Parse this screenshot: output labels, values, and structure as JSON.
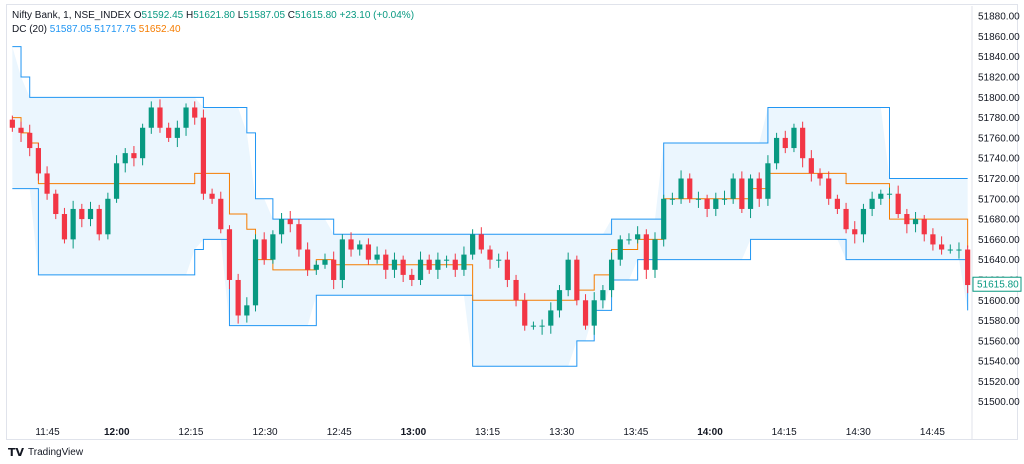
{
  "header": {
    "symbol": "Nifty Bank, 1, NSE_INDEX",
    "o_label": "O",
    "o_value": "51592.45",
    "h_label": "H",
    "h_value": "51621.80",
    "l_label": "L",
    "l_value": "51587.05",
    "c_label": "C",
    "c_value": "51615.80",
    "change": "+23.10 (+0.04%)"
  },
  "indicator": {
    "name": "DC (20)",
    "lower": "51587.05",
    "upper": "51717.75",
    "basis": "51652.40"
  },
  "footer": {
    "brand": "TradingView"
  },
  "colors": {
    "up": "#089981",
    "down": "#f23645",
    "channel_line": "#2196f3",
    "channel_fill": "#e3f2fd",
    "basis_line": "#f57c00"
  },
  "chart_data": {
    "type": "candlestick",
    "yaxis": {
      "ticks": [
        "51880.00",
        "51860.00",
        "51840.00",
        "51820.00",
        "51800.00",
        "51780.00",
        "51760.00",
        "51740.00",
        "51720.00",
        "51700.00",
        "51680.00",
        "51660.00",
        "51640.00",
        "51620.00",
        "51600.00",
        "51580.00",
        "51560.00",
        "51540.00",
        "51520.00",
        "51500.00"
      ],
      "last_price_label": "51615.80",
      "range": [
        51482,
        51890
      ]
    },
    "xaxis": {
      "ticks": [
        "11:45",
        "12:00",
        "12:15",
        "12:30",
        "12:45",
        "13:00",
        "13:15",
        "13:30",
        "13:45",
        "14:00",
        "14:15",
        "14:30",
        "14:45"
      ],
      "bold_ticks": [
        "12:00",
        "13:00",
        "14:00"
      ]
    },
    "closes": [
      51770,
      51765,
      51750,
      51725,
      51705,
      51685,
      51660,
      51690,
      51680,
      51690,
      51665,
      51700,
      51735,
      51745,
      51740,
      51770,
      51790,
      51770,
      51760,
      51770,
      51790,
      51780,
      51705,
      51700,
      51670,
      51620,
      51585,
      51595,
      51660,
      51640,
      51665,
      51680,
      51675,
      51650,
      51630,
      51635,
      51640,
      51620,
      51660,
      51650,
      51655,
      51640,
      51645,
      51630,
      51640,
      51625,
      51620,
      51640,
      51630,
      51640,
      51640,
      51630,
      51645,
      51665,
      51650,
      51640,
      51640,
      51620,
      51600,
      51575,
      51575,
      51575,
      51590,
      51610,
      51640,
      51600,
      51575,
      51600,
      51610,
      51640,
      51660,
      51660,
      51665,
      51630,
      51660,
      51700,
      51700,
      51720,
      51700,
      51700,
      51690,
      51700,
      51700,
      51720,
      51690,
      51720,
      51700,
      51735,
      51760,
      51750,
      51770,
      51740,
      51725,
      51720,
      51700,
      51690,
      51670,
      51665,
      51690,
      51700,
      51705,
      51705,
      51685,
      51675,
      51680,
      51665,
      51655,
      51650,
      51650,
      51650,
      51615
    ],
    "donchian_upper": [
      51850,
      51820,
      51800,
      51800,
      51800,
      51800,
      51800,
      51800,
      51800,
      51800,
      51800,
      51800,
      51800,
      51800,
      51800,
      51800,
      51800,
      51800,
      51800,
      51800,
      51800,
      51800,
      51790,
      51790,
      51790,
      51790,
      51790,
      51765,
      51700,
      51700,
      51680,
      51680,
      51680,
      51680,
      51680,
      51680,
      51680,
      51665,
      51665,
      51665,
      51665,
      51665,
      51665,
      51665,
      51665,
      51665,
      51665,
      51665,
      51665,
      51665,
      51665,
      51665,
      51665,
      51665,
      51665,
      51665,
      51665,
      51665,
      51665,
      51665,
      51665,
      51665,
      51665,
      51665,
      51665,
      51665,
      51665,
      51665,
      51665,
      51680,
      51680,
      51680,
      51680,
      51680,
      51680,
      51755,
      51755,
      51755,
      51755,
      51755,
      51755,
      51755,
      51755,
      51755,
      51755,
      51755,
      51755,
      51790,
      51790,
      51790,
      51790,
      51790,
      51790,
      51790,
      51790,
      51790,
      51790,
      51790,
      51790,
      51790,
      51790,
      51720,
      51720,
      51720,
      51720,
      51720,
      51720,
      51720,
      51720,
      51720,
      51720
    ],
    "donchian_lower": [
      51710,
      51710,
      51710,
      51625,
      51625,
      51625,
      51625,
      51625,
      51625,
      51625,
      51625,
      51625,
      51625,
      51625,
      51625,
      51625,
      51625,
      51625,
      51625,
      51625,
      51625,
      51650,
      51660,
      51660,
      51660,
      51575,
      51575,
      51575,
      51575,
      51575,
      51575,
      51575,
      51575,
      51575,
      51575,
      51605,
      51605,
      51605,
      51605,
      51605,
      51605,
      51605,
      51605,
      51605,
      51605,
      51605,
      51605,
      51605,
      51605,
      51605,
      51605,
      51605,
      51605,
      51535,
      51535,
      51535,
      51535,
      51535,
      51535,
      51535,
      51535,
      51535,
      51535,
      51535,
      51535,
      51560,
      51560,
      51590,
      51590,
      51620,
      51620,
      51620,
      51640,
      51640,
      51640,
      51640,
      51640,
      51640,
      51640,
      51640,
      51640,
      51640,
      51640,
      51640,
      51640,
      51660,
      51660,
      51660,
      51660,
      51660,
      51660,
      51660,
      51660,
      51660,
      51660,
      51660,
      51640,
      51640,
      51640,
      51640,
      51640,
      51640,
      51640,
      51640,
      51640,
      51640,
      51640,
      51640,
      51640,
      51640,
      51590
    ],
    "donchian_basis": [
      51780,
      51765,
      51755,
      51715,
      51715,
      51715,
      51715,
      51715,
      51715,
      51715,
      51715,
      51715,
      51715,
      51715,
      51715,
      51715,
      51715,
      51715,
      51715,
      51715,
      51715,
      51725,
      51725,
      51725,
      51725,
      51685,
      51685,
      51670,
      51640,
      51640,
      51630,
      51630,
      51630,
      51630,
      51630,
      51640,
      51640,
      51635,
      51635,
      51635,
      51635,
      51635,
      51635,
      51635,
      51635,
      51635,
      51635,
      51635,
      51635,
      51635,
      51635,
      51635,
      51635,
      51600,
      51600,
      51600,
      51600,
      51600,
      51600,
      51600,
      51600,
      51600,
      51600,
      51600,
      51600,
      51610,
      51610,
      51625,
      51625,
      51650,
      51650,
      51650,
      51660,
      51660,
      51660,
      51700,
      51700,
      51700,
      51700,
      51700,
      51700,
      51700,
      51700,
      51700,
      51700,
      51710,
      51710,
      51725,
      51725,
      51725,
      51725,
      51725,
      51725,
      51725,
      51725,
      51725,
      51715,
      51715,
      51715,
      51715,
      51715,
      51680,
      51680,
      51680,
      51680,
      51680,
      51680,
      51680,
      51680,
      51680,
      51652
    ]
  }
}
